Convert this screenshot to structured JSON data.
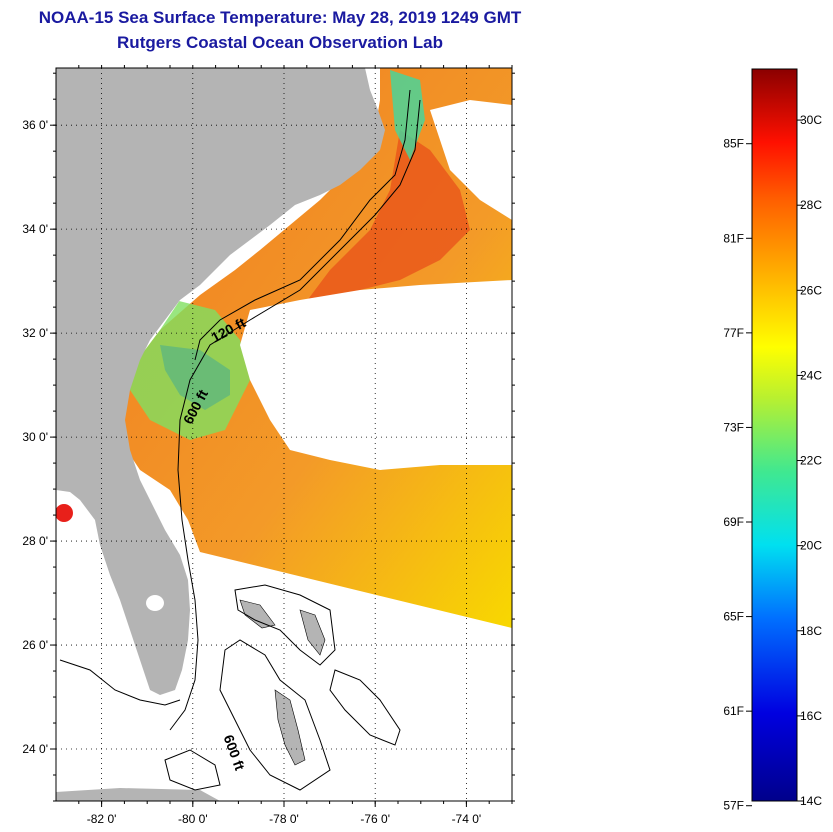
{
  "header": {
    "title": "NOAA-15 Sea Surface Temperature:  May 28, 2019 1249 GMT",
    "subtitle": "Rutgers Coastal Ocean Observation Lab"
  },
  "map": {
    "lat_range": [
      23,
      37.1
    ],
    "lon_range": [
      -83,
      -73
    ],
    "lat_ticks": [
      {
        "value": 24,
        "label": "24 0'"
      },
      {
        "value": 26,
        "label": "26 0'"
      },
      {
        "value": 28,
        "label": "28 0'"
      },
      {
        "value": 30,
        "label": "30 0'"
      },
      {
        "value": 32,
        "label": "32 0'"
      },
      {
        "value": 34,
        "label": "34 0'"
      },
      {
        "value": 36,
        "label": "36 0'"
      }
    ],
    "lon_ticks": [
      {
        "value": -82,
        "label": "-82 0'"
      },
      {
        "value": -80,
        "label": "-80 0'"
      },
      {
        "value": -78,
        "label": "-78 0'"
      },
      {
        "value": -76,
        "label": "-76 0'"
      },
      {
        "value": -74,
        "label": "-74 0'"
      }
    ],
    "contour_labels": [
      "120 ft",
      "600 ft",
      "600 ft"
    ],
    "colors": {
      "land": "#b4b4b4",
      "cloud": "#ffffff",
      "ocean_warm": "#f5821e",
      "ocean_hot": "#e84a12"
    }
  },
  "colorbar": {
    "fahrenheit": [
      "85F",
      "81F",
      "77F",
      "73F",
      "69F",
      "65F",
      "61F",
      "57F"
    ],
    "celsius": [
      "30C",
      "28C",
      "26C",
      "24C",
      "22C",
      "20C",
      "18C",
      "16C",
      "14C"
    ],
    "range_c": [
      14,
      31.2
    ]
  }
}
